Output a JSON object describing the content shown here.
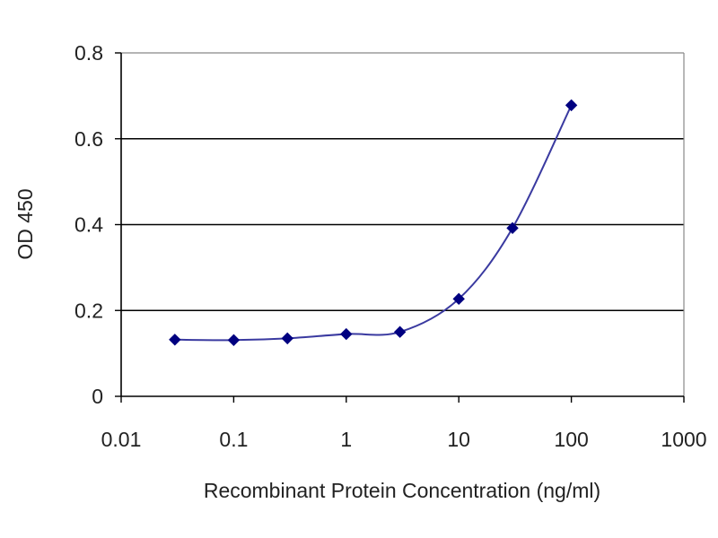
{
  "chart_data": {
    "type": "line",
    "xlabel": "Recombinant Protein Concentration (ng/ml)",
    "ylabel": "OD 450",
    "xscale": "log",
    "xlim": [
      0.01,
      1000
    ],
    "ylim": [
      0,
      0.8
    ],
    "x_ticks": [
      "0.01",
      "0.1",
      "1",
      "10",
      "100",
      "1000"
    ],
    "x_tick_values": [
      0.01,
      0.1,
      1,
      10,
      100,
      1000
    ],
    "y_ticks": [
      "0",
      "0.2",
      "0.4",
      "0.6",
      "0.8"
    ],
    "y_tick_values": [
      0,
      0.2,
      0.4,
      0.6,
      0.8
    ],
    "grid": "horizontal",
    "series": [
      {
        "x": [
          0.03,
          0.1,
          0.3,
          1,
          3,
          10,
          30,
          100
        ],
        "y": [
          0.132,
          0.131,
          0.135,
          0.145,
          0.15,
          0.227,
          0.392,
          0.678
        ],
        "color": "#000080",
        "marker": "diamond"
      }
    ],
    "colors": {
      "line": "#3a3aa0",
      "marker": "#000080",
      "grid": "#000000",
      "frame": "#888888",
      "text": "#222222"
    }
  }
}
